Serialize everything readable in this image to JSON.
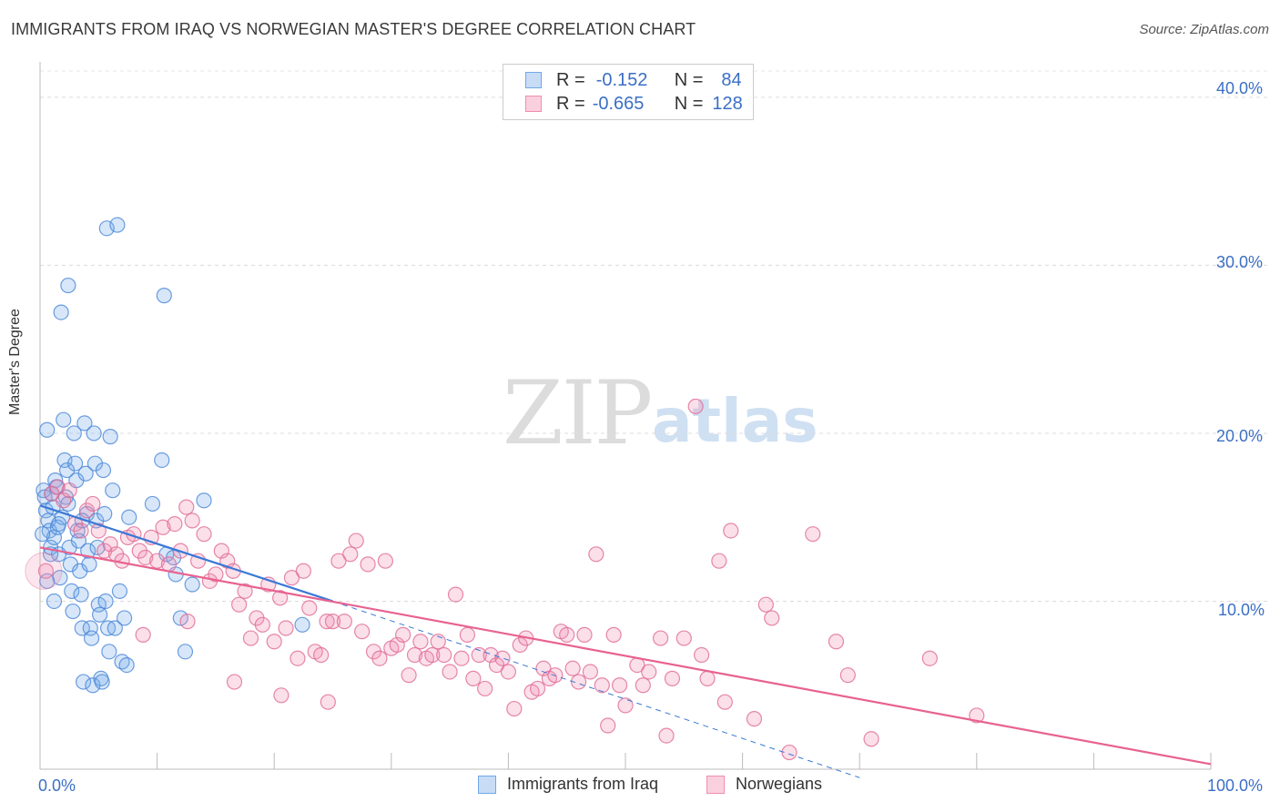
{
  "title": "IMMIGRANTS FROM IRAQ VS NORWEGIAN MASTER'S DEGREE CORRELATION CHART",
  "source": "Source: ZipAtlas.com",
  "watermark": {
    "zip": "ZIP",
    "atlas": "atlas"
  },
  "legend": {
    "rows": [
      {
        "r_label": "R =",
        "r_value": "-0.152",
        "n_label": "N =",
        "n_value": "84",
        "color": "#6fa8ea"
      },
      {
        "r_label": "R =",
        "r_value": "-0.665",
        "n_label": "N =",
        "n_value": "128",
        "color": "#f08db0"
      }
    ]
  },
  "bottom_legend": [
    {
      "label": "Immigrants from Iraq",
      "color": "#6fa8ea"
    },
    {
      "label": "Norwegians",
      "color": "#f08db0"
    }
  ],
  "chart_data": {
    "type": "scatter",
    "title": "IMMIGRANTS FROM IRAQ VS NORWEGIAN MASTER'S DEGREE CORRELATION CHART",
    "xlabel": "",
    "ylabel": "Master's Degree",
    "xlim": [
      0,
      100
    ],
    "ylim": [
      0,
      42
    ],
    "x_tick_labels": [
      "0.0%",
      "100.0%"
    ],
    "y_ticks": [
      10,
      20,
      30,
      40
    ],
    "y_tick_labels": [
      "10.0%",
      "20.0%",
      "30.0%",
      "40.0%"
    ],
    "grid": true,
    "legend_position": "top-center",
    "series": [
      {
        "name": "Immigrants from Iraq",
        "color": "#6fa8ea",
        "stroke": "#4a86d8",
        "trend": {
          "x0": 0,
          "y0": 15.7,
          "x1": 25,
          "y1": 10.0,
          "dashed_to_x": 70,
          "dashed_to_y": -0.5
        },
        "points": [
          [
            0.3,
            16.6
          ],
          [
            0.4,
            16.2
          ],
          [
            0.5,
            15.4
          ],
          [
            0.6,
            20.2
          ],
          [
            0.7,
            14.8
          ],
          [
            0.8,
            14.2
          ],
          [
            0.9,
            13.2
          ],
          [
            1.0,
            16.4
          ],
          [
            1.1,
            15.6
          ],
          [
            1.2,
            13.8
          ],
          [
            1.3,
            17.2
          ],
          [
            1.4,
            16.8
          ],
          [
            1.5,
            14.4
          ],
          [
            1.6,
            12.8
          ],
          [
            1.7,
            11.4
          ],
          [
            1.8,
            27.2
          ],
          [
            1.9,
            15.0
          ],
          [
            2.0,
            20.8
          ],
          [
            2.1,
            18.4
          ],
          [
            2.2,
            16.2
          ],
          [
            2.3,
            17.8
          ],
          [
            2.4,
            28.8
          ],
          [
            2.5,
            13.2
          ],
          [
            2.6,
            12.2
          ],
          [
            2.7,
            10.6
          ],
          [
            2.8,
            9.4
          ],
          [
            2.9,
            20.0
          ],
          [
            3.0,
            18.2
          ],
          [
            3.1,
            17.2
          ],
          [
            3.2,
            14.2
          ],
          [
            3.3,
            13.6
          ],
          [
            3.4,
            11.8
          ],
          [
            3.5,
            10.4
          ],
          [
            3.6,
            8.4
          ],
          [
            3.7,
            5.2
          ],
          [
            3.8,
            20.6
          ],
          [
            3.9,
            17.6
          ],
          [
            4.0,
            15.2
          ],
          [
            4.1,
            13.0
          ],
          [
            4.2,
            12.2
          ],
          [
            4.3,
            8.4
          ],
          [
            4.4,
            7.8
          ],
          [
            4.5,
            5.0
          ],
          [
            4.6,
            20.0
          ],
          [
            4.7,
            18.2
          ],
          [
            4.8,
            14.8
          ],
          [
            4.9,
            13.2
          ],
          [
            5.0,
            9.8
          ],
          [
            5.1,
            9.2
          ],
          [
            5.2,
            5.4
          ],
          [
            5.3,
            5.2
          ],
          [
            5.4,
            17.8
          ],
          [
            5.5,
            15.2
          ],
          [
            5.6,
            10.0
          ],
          [
            5.7,
            32.2
          ],
          [
            5.8,
            8.4
          ],
          [
            5.9,
            7.0
          ],
          [
            6.0,
            19.8
          ],
          [
            6.2,
            16.6
          ],
          [
            6.4,
            8.4
          ],
          [
            6.6,
            32.4
          ],
          [
            6.8,
            10.6
          ],
          [
            7.0,
            6.4
          ],
          [
            7.2,
            9.0
          ],
          [
            7.4,
            6.2
          ],
          [
            7.6,
            15.0
          ],
          [
            9.6,
            15.8
          ],
          [
            10.4,
            18.4
          ],
          [
            10.6,
            28.2
          ],
          [
            10.8,
            12.8
          ],
          [
            11.4,
            12.6
          ],
          [
            11.6,
            11.6
          ],
          [
            12.0,
            9.0
          ],
          [
            12.4,
            7.0
          ],
          [
            13.0,
            11.0
          ],
          [
            14.0,
            16.0
          ],
          [
            22.4,
            8.6
          ],
          [
            0.9,
            12.8
          ],
          [
            1.6,
            14.6
          ],
          [
            2.4,
            15.8
          ],
          [
            3.6,
            14.8
          ],
          [
            0.2,
            14.0
          ],
          [
            0.6,
            11.2
          ],
          [
            1.2,
            10.0
          ]
        ]
      },
      {
        "name": "Norwegians",
        "color": "#f08db0",
        "stroke": "#e06a95",
        "trend": {
          "x0": 0,
          "y0": 13.2,
          "x1": 100,
          "y1": 0.3
        },
        "points": [
          [
            0.5,
            11.8
          ],
          [
            1.0,
            16.4
          ],
          [
            1.5,
            16.8
          ],
          [
            2.0,
            16.0
          ],
          [
            2.5,
            16.6
          ],
          [
            3.0,
            14.6
          ],
          [
            3.5,
            14.2
          ],
          [
            4.0,
            15.4
          ],
          [
            4.5,
            15.8
          ],
          [
            5.0,
            14.2
          ],
          [
            5.5,
            13.0
          ],
          [
            6.0,
            13.4
          ],
          [
            6.5,
            12.8
          ],
          [
            7.0,
            12.4
          ],
          [
            7.5,
            13.8
          ],
          [
            8.0,
            14.0
          ],
          [
            8.5,
            13.0
          ],
          [
            9.0,
            12.6
          ],
          [
            9.5,
            13.8
          ],
          [
            10.0,
            12.4
          ],
          [
            10.5,
            14.4
          ],
          [
            11.0,
            12.2
          ],
          [
            11.5,
            14.6
          ],
          [
            12.0,
            13.0
          ],
          [
            12.5,
            15.6
          ],
          [
            13.0,
            14.8
          ],
          [
            13.5,
            12.4
          ],
          [
            14.0,
            14.0
          ],
          [
            14.5,
            11.2
          ],
          [
            15.0,
            11.6
          ],
          [
            15.5,
            13.0
          ],
          [
            16.0,
            12.4
          ],
          [
            16.5,
            11.8
          ],
          [
            17.0,
            9.8
          ],
          [
            17.5,
            10.6
          ],
          [
            18.0,
            7.8
          ],
          [
            18.5,
            9.0
          ],
          [
            19.0,
            8.6
          ],
          [
            19.5,
            11.0
          ],
          [
            20.0,
            7.6
          ],
          [
            20.5,
            10.2
          ],
          [
            21.0,
            8.4
          ],
          [
            21.5,
            11.4
          ],
          [
            22.0,
            6.6
          ],
          [
            22.5,
            11.8
          ],
          [
            23.0,
            9.6
          ],
          [
            23.5,
            7.0
          ],
          [
            24.0,
            6.8
          ],
          [
            24.5,
            8.8
          ],
          [
            25.0,
            8.8
          ],
          [
            25.5,
            12.4
          ],
          [
            26.0,
            8.8
          ],
          [
            26.5,
            12.8
          ],
          [
            27.0,
            13.6
          ],
          [
            27.5,
            8.2
          ],
          [
            28.0,
            12.2
          ],
          [
            28.5,
            7.0
          ],
          [
            29.0,
            6.6
          ],
          [
            29.5,
            12.4
          ],
          [
            30.0,
            7.2
          ],
          [
            30.5,
            7.4
          ],
          [
            31.0,
            8.0
          ],
          [
            31.5,
            5.6
          ],
          [
            32.0,
            6.8
          ],
          [
            32.5,
            7.6
          ],
          [
            33.0,
            6.6
          ],
          [
            33.5,
            6.8
          ],
          [
            34.0,
            7.6
          ],
          [
            34.5,
            6.8
          ],
          [
            35.0,
            5.8
          ],
          [
            35.5,
            10.4
          ],
          [
            36.0,
            6.6
          ],
          [
            36.5,
            8.0
          ],
          [
            37.0,
            5.4
          ],
          [
            37.5,
            6.8
          ],
          [
            38.0,
            4.8
          ],
          [
            38.5,
            6.8
          ],
          [
            39.0,
            6.2
          ],
          [
            39.5,
            6.6
          ],
          [
            40.0,
            5.8
          ],
          [
            40.5,
            3.6
          ],
          [
            41.0,
            7.4
          ],
          [
            41.5,
            7.8
          ],
          [
            42.0,
            4.6
          ],
          [
            42.5,
            4.8
          ],
          [
            43.0,
            6.0
          ],
          [
            43.5,
            5.4
          ],
          [
            44.0,
            5.6
          ],
          [
            44.5,
            8.2
          ],
          [
            45.0,
            8.0
          ],
          [
            45.5,
            6.0
          ],
          [
            46.0,
            5.2
          ],
          [
            46.5,
            8.0
          ],
          [
            47.0,
            5.8
          ],
          [
            47.5,
            12.8
          ],
          [
            48.0,
            5.0
          ],
          [
            48.5,
            2.6
          ],
          [
            49.0,
            8.0
          ],
          [
            49.5,
            5.0
          ],
          [
            50.0,
            3.8
          ],
          [
            51.0,
            6.2
          ],
          [
            51.5,
            5.0
          ],
          [
            52.0,
            5.8
          ],
          [
            53.0,
            7.8
          ],
          [
            53.5,
            2.0
          ],
          [
            54.0,
            5.4
          ],
          [
            55.0,
            7.8
          ],
          [
            56.0,
            21.6
          ],
          [
            56.5,
            6.8
          ],
          [
            57.0,
            5.4
          ],
          [
            58.0,
            12.4
          ],
          [
            58.5,
            4.0
          ],
          [
            59.0,
            14.2
          ],
          [
            61.0,
            3.0
          ],
          [
            62.0,
            9.8
          ],
          [
            62.5,
            9.0
          ],
          [
            64.0,
            1.0
          ],
          [
            66.0,
            14.0
          ],
          [
            68.0,
            7.6
          ],
          [
            69.0,
            5.6
          ],
          [
            71.0,
            1.8
          ],
          [
            76.0,
            6.6
          ],
          [
            80.0,
            3.2
          ],
          [
            8.8,
            8.0
          ],
          [
            12.6,
            8.8
          ],
          [
            16.6,
            5.2
          ],
          [
            20.6,
            4.4
          ],
          [
            24.6,
            4.0
          ]
        ]
      }
    ]
  }
}
